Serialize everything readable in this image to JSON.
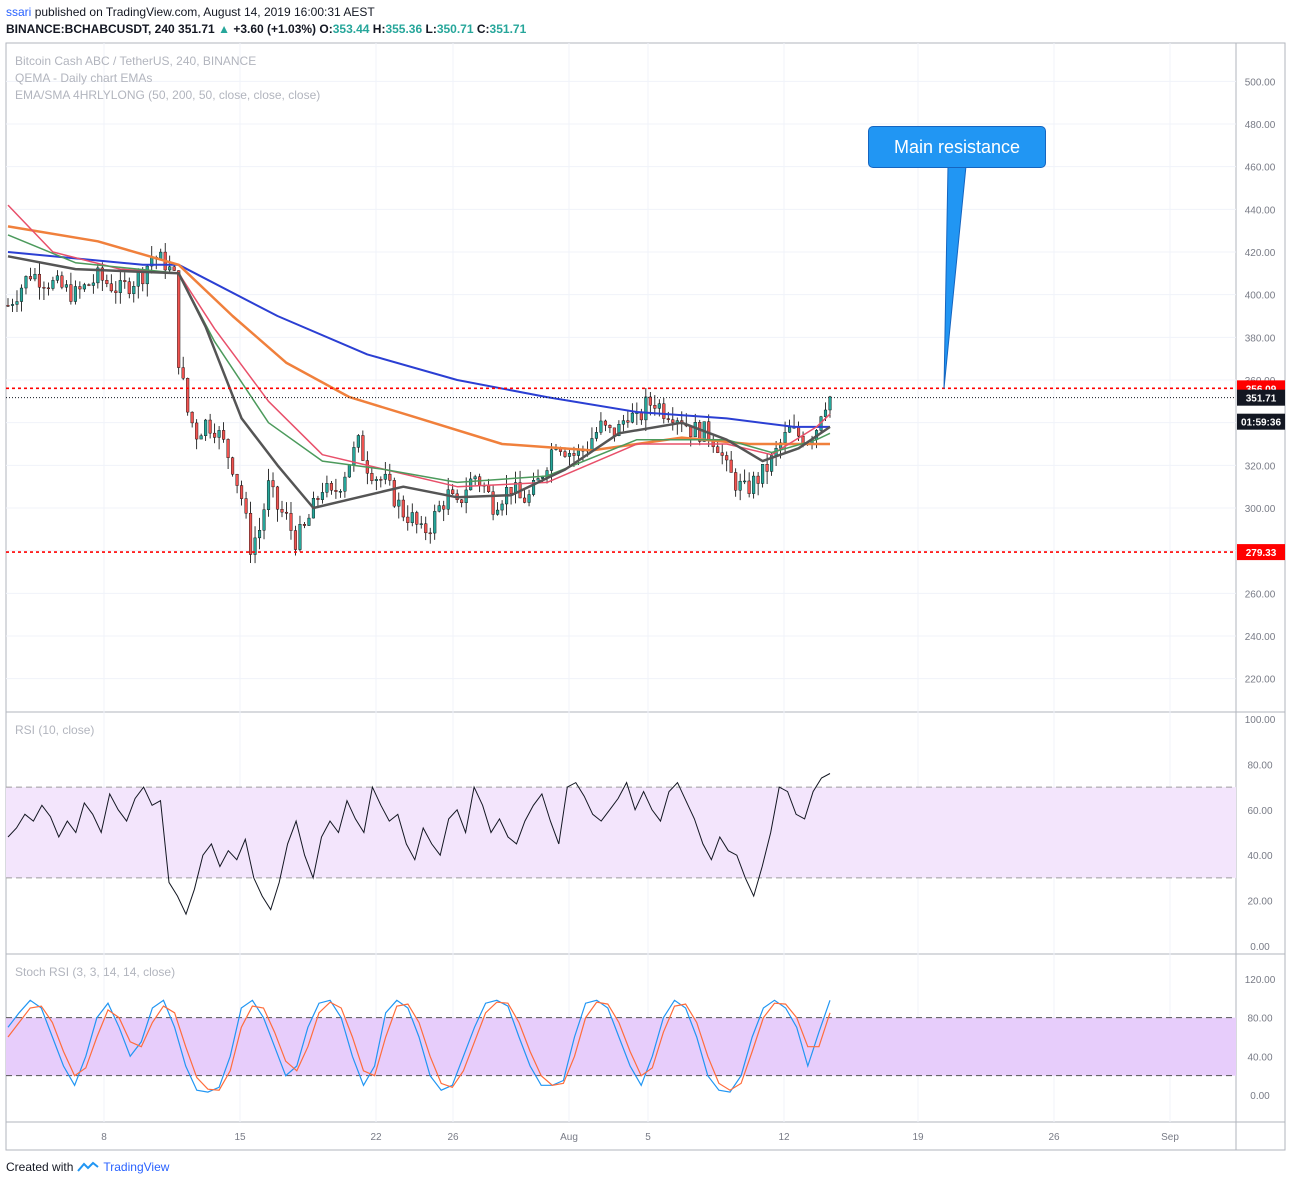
{
  "header": {
    "user": "ssari",
    "published": "published on TradingView.com, August 14, 2019 16:00:31 AEST",
    "symbol": "BINANCE:BCHABCUSDT, 240",
    "last": "351.71",
    "change": "+3.60 (+1.03%)",
    "o_label": "O:",
    "o_value": "353.44",
    "h_label": "H:",
    "h_value": "355.36",
    "l_label": "L:",
    "l_value": "350.71",
    "c_label": "C:",
    "c_value": "351.71",
    "up_arrow": "▲"
  },
  "legends": {
    "main_1": "Bitcoin Cash ABC / TetherUS, 240, BINANCE",
    "main_2": "QEMA - Daily chart EMAs",
    "main_3": "EMA/SMA 4HRLYLONG (50, 200, 50, close, close, close)",
    "rsi": "RSI (10, close)",
    "stoch": "Stoch RSI (3, 3, 14, 14, close)"
  },
  "annotation": {
    "text": "Main resistance",
    "color": "#2196f3"
  },
  "footer": {
    "created_with": "Created with",
    "brand": "TradingView"
  },
  "colors": {
    "up": "#26a69a",
    "down": "#ef5350",
    "ema_blue": "#2b3fd3",
    "ema_orange": "#f0803c",
    "ema_red": "#e8506a",
    "ema_green": "#4c9a5c",
    "ema_dark": "#555555",
    "level_red": "#ff0000",
    "rsi_band": "#f3e5fc",
    "stoch_band": "#e7cdfb",
    "stoch_k": "#2196f3",
    "stoch_d": "#ff6d3c"
  },
  "chart_data": [
    {
      "type": "candlestick",
      "title": "Bitcoin Cash ABC / TetherUS, 240, BINANCE",
      "ylim": [
        210,
        510
      ],
      "y_ticks": [
        "500.00",
        "480.00",
        "460.00",
        "440.00",
        "420.00",
        "400.00",
        "380.00",
        "360.00",
        "340.00",
        "320.00",
        "300.00",
        "280.00",
        "260.00",
        "240.00",
        "220.00"
      ],
      "x_ticks": [
        "8",
        "15",
        "22",
        "26",
        "Aug",
        "5",
        "12",
        "19",
        "26",
        "Sep"
      ],
      "levels": [
        {
          "value": 356.09,
          "label": "356.09",
          "style": "dashed",
          "color": "#ff0000"
        },
        {
          "value": 279.33,
          "label": "279.33",
          "style": "dashed",
          "color": "#ff0000"
        },
        {
          "value": 351.71,
          "label": "351.71",
          "style": "dotted",
          "color": "#131722"
        }
      ],
      "countdown": "01:59:36",
      "price_path": [
        [
          0,
          395
        ],
        [
          5,
          410
        ],
        [
          10,
          405
        ],
        [
          15,
          400
        ],
        [
          20,
          408
        ],
        [
          25,
          402
        ],
        [
          30,
          410
        ],
        [
          32,
          418
        ],
        [
          35,
          415
        ],
        [
          37,
          408
        ],
        [
          38,
          370
        ],
        [
          40,
          345
        ],
        [
          42,
          335
        ],
        [
          44,
          340
        ],
        [
          46,
          338
        ],
        [
          48,
          330
        ],
        [
          50,
          320
        ],
        [
          52,
          305
        ],
        [
          54,
          282
        ],
        [
          56,
          290
        ],
        [
          58,
          310
        ],
        [
          60,
          300
        ],
        [
          62,
          295
        ],
        [
          64,
          285
        ],
        [
          66,
          290
        ],
        [
          68,
          300
        ],
        [
          70,
          310
        ],
        [
          72,
          305
        ],
        [
          74,
          312
        ],
        [
          76,
          322
        ],
        [
          78,
          330
        ],
        [
          80,
          320
        ],
        [
          82,
          315
        ],
        [
          84,
          312
        ],
        [
          86,
          305
        ],
        [
          88,
          298
        ],
        [
          90,
          295
        ],
        [
          92,
          288
        ],
        [
          94,
          292
        ],
        [
          96,
          300
        ],
        [
          98,
          306
        ],
        [
          100,
          300
        ],
        [
          102,
          310
        ],
        [
          104,
          315
        ],
        [
          106,
          310
        ],
        [
          108,
          302
        ],
        [
          110,
          306
        ],
        [
          112,
          310
        ],
        [
          114,
          304
        ],
        [
          116,
          305
        ],
        [
          118,
          312
        ],
        [
          120,
          322
        ],
        [
          122,
          332
        ],
        [
          124,
          328
        ],
        [
          126,
          325
        ],
        [
          128,
          327
        ],
        [
          130,
          333
        ],
        [
          132,
          338
        ],
        [
          134,
          335
        ],
        [
          136,
          337
        ],
        [
          138,
          345
        ],
        [
          140,
          340
        ],
        [
          142,
          348
        ],
        [
          144,
          350
        ],
        [
          146,
          346
        ],
        [
          148,
          345
        ],
        [
          150,
          342
        ],
        [
          152,
          337
        ],
        [
          154,
          336
        ],
        [
          156,
          335
        ],
        [
          158,
          330
        ],
        [
          160,
          318
        ],
        [
          162,
          312
        ],
        [
          164,
          308
        ],
        [
          166,
          312
        ],
        [
          168,
          316
        ],
        [
          170,
          322
        ],
        [
          172,
          330
        ],
        [
          174,
          336
        ],
        [
          176,
          334
        ],
        [
          178,
          333
        ],
        [
          180,
          338
        ],
        [
          181,
          346
        ],
        [
          182,
          350
        ],
        [
          183,
          352
        ]
      ],
      "emas": {
        "blue": [
          [
            0,
            420
          ],
          [
            30,
            414
          ],
          [
            38,
            414
          ],
          [
            60,
            390
          ],
          [
            80,
            372
          ],
          [
            100,
            360
          ],
          [
            120,
            352
          ],
          [
            140,
            345
          ],
          [
            160,
            342
          ],
          [
            175,
            338
          ],
          [
            183,
            338
          ]
        ],
        "orange": [
          [
            0,
            432
          ],
          [
            20,
            425
          ],
          [
            38,
            414
          ],
          [
            50,
            390
          ],
          [
            62,
            368
          ],
          [
            76,
            352
          ],
          [
            90,
            343
          ],
          [
            110,
            330
          ],
          [
            130,
            327
          ],
          [
            150,
            333
          ],
          [
            165,
            330
          ],
          [
            175,
            330
          ],
          [
            183,
            330
          ]
        ],
        "red": [
          [
            0,
            442
          ],
          [
            10,
            420
          ],
          [
            25,
            412
          ],
          [
            38,
            410
          ],
          [
            46,
            384
          ],
          [
            58,
            350
          ],
          [
            70,
            325
          ],
          [
            84,
            318
          ],
          [
            100,
            310
          ],
          [
            120,
            312
          ],
          [
            140,
            330
          ],
          [
            160,
            330
          ],
          [
            170,
            325
          ],
          [
            180,
            338
          ],
          [
            183,
            344
          ]
        ],
        "green": [
          [
            0,
            428
          ],
          [
            15,
            415
          ],
          [
            38,
            410
          ],
          [
            46,
            378
          ],
          [
            58,
            340
          ],
          [
            70,
            322
          ],
          [
            84,
            318
          ],
          [
            100,
            312
          ],
          [
            120,
            315
          ],
          [
            140,
            332
          ],
          [
            160,
            332
          ],
          [
            170,
            326
          ],
          [
            180,
            332
          ],
          [
            183,
            335
          ]
        ],
        "dark": [
          [
            0,
            418
          ],
          [
            15,
            412
          ],
          [
            38,
            410
          ],
          [
            44,
            385
          ],
          [
            52,
            342
          ],
          [
            60,
            320
          ],
          [
            68,
            300
          ],
          [
            78,
            305
          ],
          [
            88,
            310
          ],
          [
            100,
            305
          ],
          [
            112,
            306
          ],
          [
            124,
            318
          ],
          [
            136,
            335
          ],
          [
            150,
            340
          ],
          [
            160,
            332
          ],
          [
            168,
            322
          ],
          [
            176,
            328
          ],
          [
            183,
            338
          ]
        ]
      }
    },
    {
      "type": "line",
      "title": "RSI (10, close)",
      "ylim": [
        -5,
        105
      ],
      "y_ticks": [
        "100.00",
        "80.00",
        "60.00",
        "40.00",
        "20.00",
        "0.00"
      ],
      "band": [
        30,
        70
      ],
      "values": [
        48,
        52,
        58,
        55,
        62,
        57,
        48,
        55,
        50,
        63,
        58,
        50,
        67,
        60,
        55,
        65,
        70,
        62,
        64,
        28,
        22,
        14,
        25,
        40,
        45,
        35,
        42,
        38,
        47,
        30,
        22,
        16,
        28,
        45,
        55,
        40,
        30,
        48,
        55,
        50,
        64,
        56,
        50,
        70,
        62,
        55,
        58,
        45,
        38,
        52,
        45,
        40,
        56,
        60,
        50,
        70,
        62,
        50,
        56,
        48,
        45,
        55,
        62,
        67,
        55,
        45,
        70,
        72,
        66,
        58,
        55,
        60,
        65,
        72,
        60,
        68,
        60,
        55,
        68,
        72,
        64,
        56,
        45,
        38,
        48,
        42,
        40,
        30,
        22,
        35,
        50,
        70,
        68,
        58,
        56,
        68,
        74,
        76
      ]
    },
    {
      "type": "line",
      "title": "Stoch RSI (3, 3, 14, 14, close)",
      "ylim": [
        -15,
        125
      ],
      "y_ticks": [
        "120.00",
        "80.00",
        "40.00",
        "0.00"
      ],
      "band": [
        20,
        80
      ],
      "series": [
        {
          "values": [
            70,
            85,
            98,
            90,
            60,
            30,
            10,
            40,
            80,
            95,
            70,
            40,
            55,
            90,
            98,
            70,
            30,
            5,
            3,
            8,
            40,
            90,
            98,
            80,
            50,
            20,
            30,
            70,
            95,
            98,
            80,
            40,
            10,
            30,
            85,
            98,
            90,
            60,
            20,
            5,
            10,
            40,
            70,
            95,
            98,
            92,
            60,
            30,
            10,
            10,
            15,
            60,
            95,
            98,
            90,
            60,
            30,
            10,
            40,
            80,
            98,
            90,
            60,
            20,
            5,
            3,
            20,
            60,
            90,
            98,
            90,
            70,
            30,
            65,
            98
          ]
        },
        {
          "values": [
            60,
            75,
            90,
            92,
            75,
            45,
            20,
            28,
            60,
            88,
            80,
            55,
            50,
            75,
            92,
            85,
            50,
            18,
            6,
            5,
            25,
            70,
            92,
            90,
            65,
            35,
            25,
            50,
            85,
            96,
            90,
            60,
            25,
            20,
            60,
            92,
            94,
            75,
            40,
            12,
            8,
            25,
            55,
            85,
            96,
            95,
            75,
            45,
            20,
            10,
            12,
            40,
            80,
            96,
            94,
            75,
            45,
            20,
            28,
            65,
            92,
            94,
            75,
            40,
            12,
            5,
            12,
            45,
            80,
            95,
            94,
            80,
            50,
            50,
            85
          ]
        }
      ]
    }
  ]
}
